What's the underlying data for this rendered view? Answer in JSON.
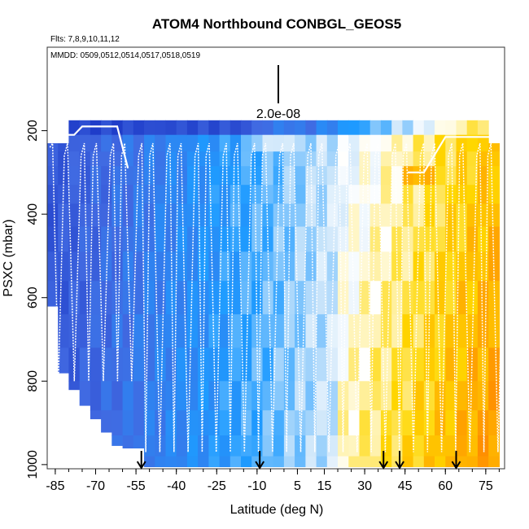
{
  "chart_data": {
    "type": "heatmap",
    "title": "ATOM4 Northbound CONBGL_GEOS5",
    "flights_label": "Flts: 7,8,9,10,11,12",
    "dates_label": "MMDD: 0509,0512,0514,0517,0518,0519",
    "scale_label": "2.0e-08",
    "xlabel": "Latitude (deg N)",
    "ylabel": "PSXC (mbar)",
    "xlim": [
      -88,
      82
    ],
    "ylim": [
      1010,
      0
    ],
    "x_ticks": [
      -85,
      -70,
      -55,
      -40,
      -25,
      -10,
      5,
      15,
      30,
      45,
      60,
      75
    ],
    "y_ticks": [
      200,
      400,
      600,
      800,
      1000
    ],
    "arrow_latitudes": [
      -53,
      -9,
      37,
      43,
      64
    ],
    "palette": {
      "very_low": "#000099",
      "low": "#1e3cc8",
      "mid_low": "#4169e1",
      "mid": "#1e9bff",
      "light": "#cde6fa",
      "neutral": "#ffffff",
      "warm": "#ffd700",
      "high": "#ff8c00",
      "very_high": "#b00000"
    },
    "pressure_levels_mbar": [
      175,
      210,
      250,
      285,
      330,
      375,
      430,
      490,
      560,
      640,
      720,
      800,
      870,
      930,
      980,
      1005
    ],
    "latitude_columns_deg": [
      -88,
      -84,
      -80,
      -76,
      -72,
      -68,
      -64,
      -60,
      -56,
      -52,
      -48,
      -44,
      -40,
      -36,
      -32,
      -28,
      -24,
      -20,
      -16,
      -12,
      -8,
      -4,
      0,
      4,
      8,
      12,
      16,
      20,
      24,
      28,
      32,
      36,
      40,
      44,
      48,
      52,
      56,
      60,
      64,
      68,
      72,
      76,
      80
    ],
    "series": [
      {
        "name": "profile_trace",
        "values": []
      }
    ]
  }
}
